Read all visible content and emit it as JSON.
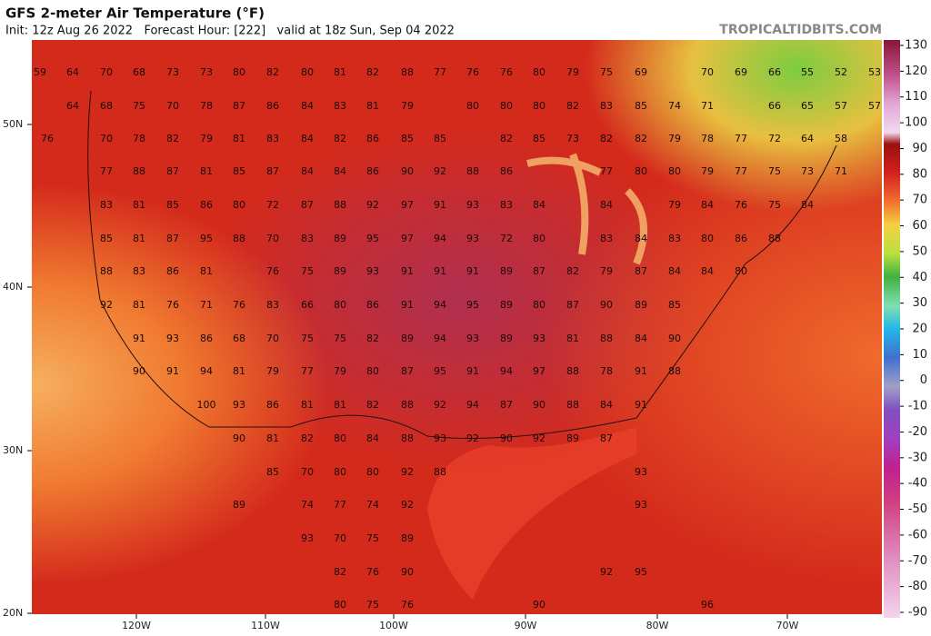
{
  "header": {
    "title": "GFS 2-meter Air Temperature (°F)",
    "subtitle": "Init: 12z Aug 26 2022   Forecast Hour: [222]   valid at 18z Sun, Sep 04 2022",
    "watermark": "TROPICALTIDBITS.COM"
  },
  "map": {
    "lat_labels": [
      "50N",
      "40N",
      "30N",
      "20N"
    ],
    "lon_labels": [
      "120W",
      "110W",
      "100W",
      "90W",
      "80W",
      "70W"
    ],
    "temperatures": [
      [
        59,
        64,
        70,
        68,
        73,
        73,
        80,
        82,
        80,
        81,
        82,
        88,
        77,
        76,
        76,
        80,
        79,
        75,
        69,
        70,
        69,
        66,
        55,
        52,
        53
      ],
      [
        64,
        68,
        75,
        70,
        78,
        87,
        86,
        84,
        83,
        81,
        79,
        80,
        80,
        80,
        82,
        83,
        85,
        74,
        71,
        66,
        65,
        57,
        57
      ],
      [
        76,
        70,
        78,
        82,
        79,
        81,
        83,
        84,
        82,
        86,
        85,
        85,
        82,
        85,
        73,
        82,
        82,
        79,
        78,
        77,
        72,
        64,
        58
      ],
      [
        77,
        88,
        87,
        81,
        85,
        87,
        84,
        84,
        86,
        90,
        92,
        88,
        86,
        77,
        80,
        80,
        79,
        77,
        75,
        73,
        71
      ],
      [
        83,
        81,
        85,
        86,
        80,
        72,
        87,
        88,
        92,
        97,
        91,
        93,
        83,
        84,
        84,
        79,
        84,
        76,
        75,
        84
      ],
      [
        85,
        81,
        87,
        95,
        88,
        70,
        83,
        89,
        95,
        97,
        94,
        93,
        72,
        80,
        83,
        84,
        83,
        80,
        86,
        88
      ],
      [
        88,
        83,
        86,
        81,
        76,
        75,
        89,
        93,
        91,
        91,
        91,
        89,
        87,
        82,
        79,
        87,
        84,
        84,
        80
      ],
      [
        92,
        81,
        76,
        71,
        76,
        83,
        66,
        80,
        86,
        91,
        94,
        95,
        89,
        80,
        87,
        90,
        89,
        85
      ],
      [
        91,
        93,
        86,
        68,
        70,
        75,
        75,
        82,
        89,
        94,
        93,
        89,
        93,
        81,
        88,
        84,
        90
      ],
      [
        90,
        91,
        94,
        81,
        79,
        77,
        79,
        80,
        87,
        95,
        91,
        94,
        97,
        88,
        78,
        91,
        88
      ],
      [
        100,
        93,
        86,
        81,
        81,
        82,
        88,
        92,
        94,
        87,
        90,
        88,
        84,
        91
      ],
      [
        90,
        81,
        82,
        80,
        84,
        88,
        93,
        92,
        90,
        92,
        89,
        87
      ],
      [
        85,
        70,
        80,
        80,
        92,
        88,
        93
      ],
      [
        89,
        74,
        77,
        74,
        92,
        93
      ],
      [
        93,
        70,
        75,
        89
      ],
      [
        82,
        76,
        90,
        92,
        95
      ],
      [
        80,
        75,
        76,
        90,
        96
      ]
    ]
  },
  "colorbar": {
    "ticks": [
      130,
      120,
      110,
      100,
      90,
      80,
      70,
      60,
      50,
      40,
      30,
      20,
      10,
      0,
      -10,
      -20,
      -30,
      -40,
      -50,
      -60,
      -70,
      -80,
      -90
    ]
  }
}
